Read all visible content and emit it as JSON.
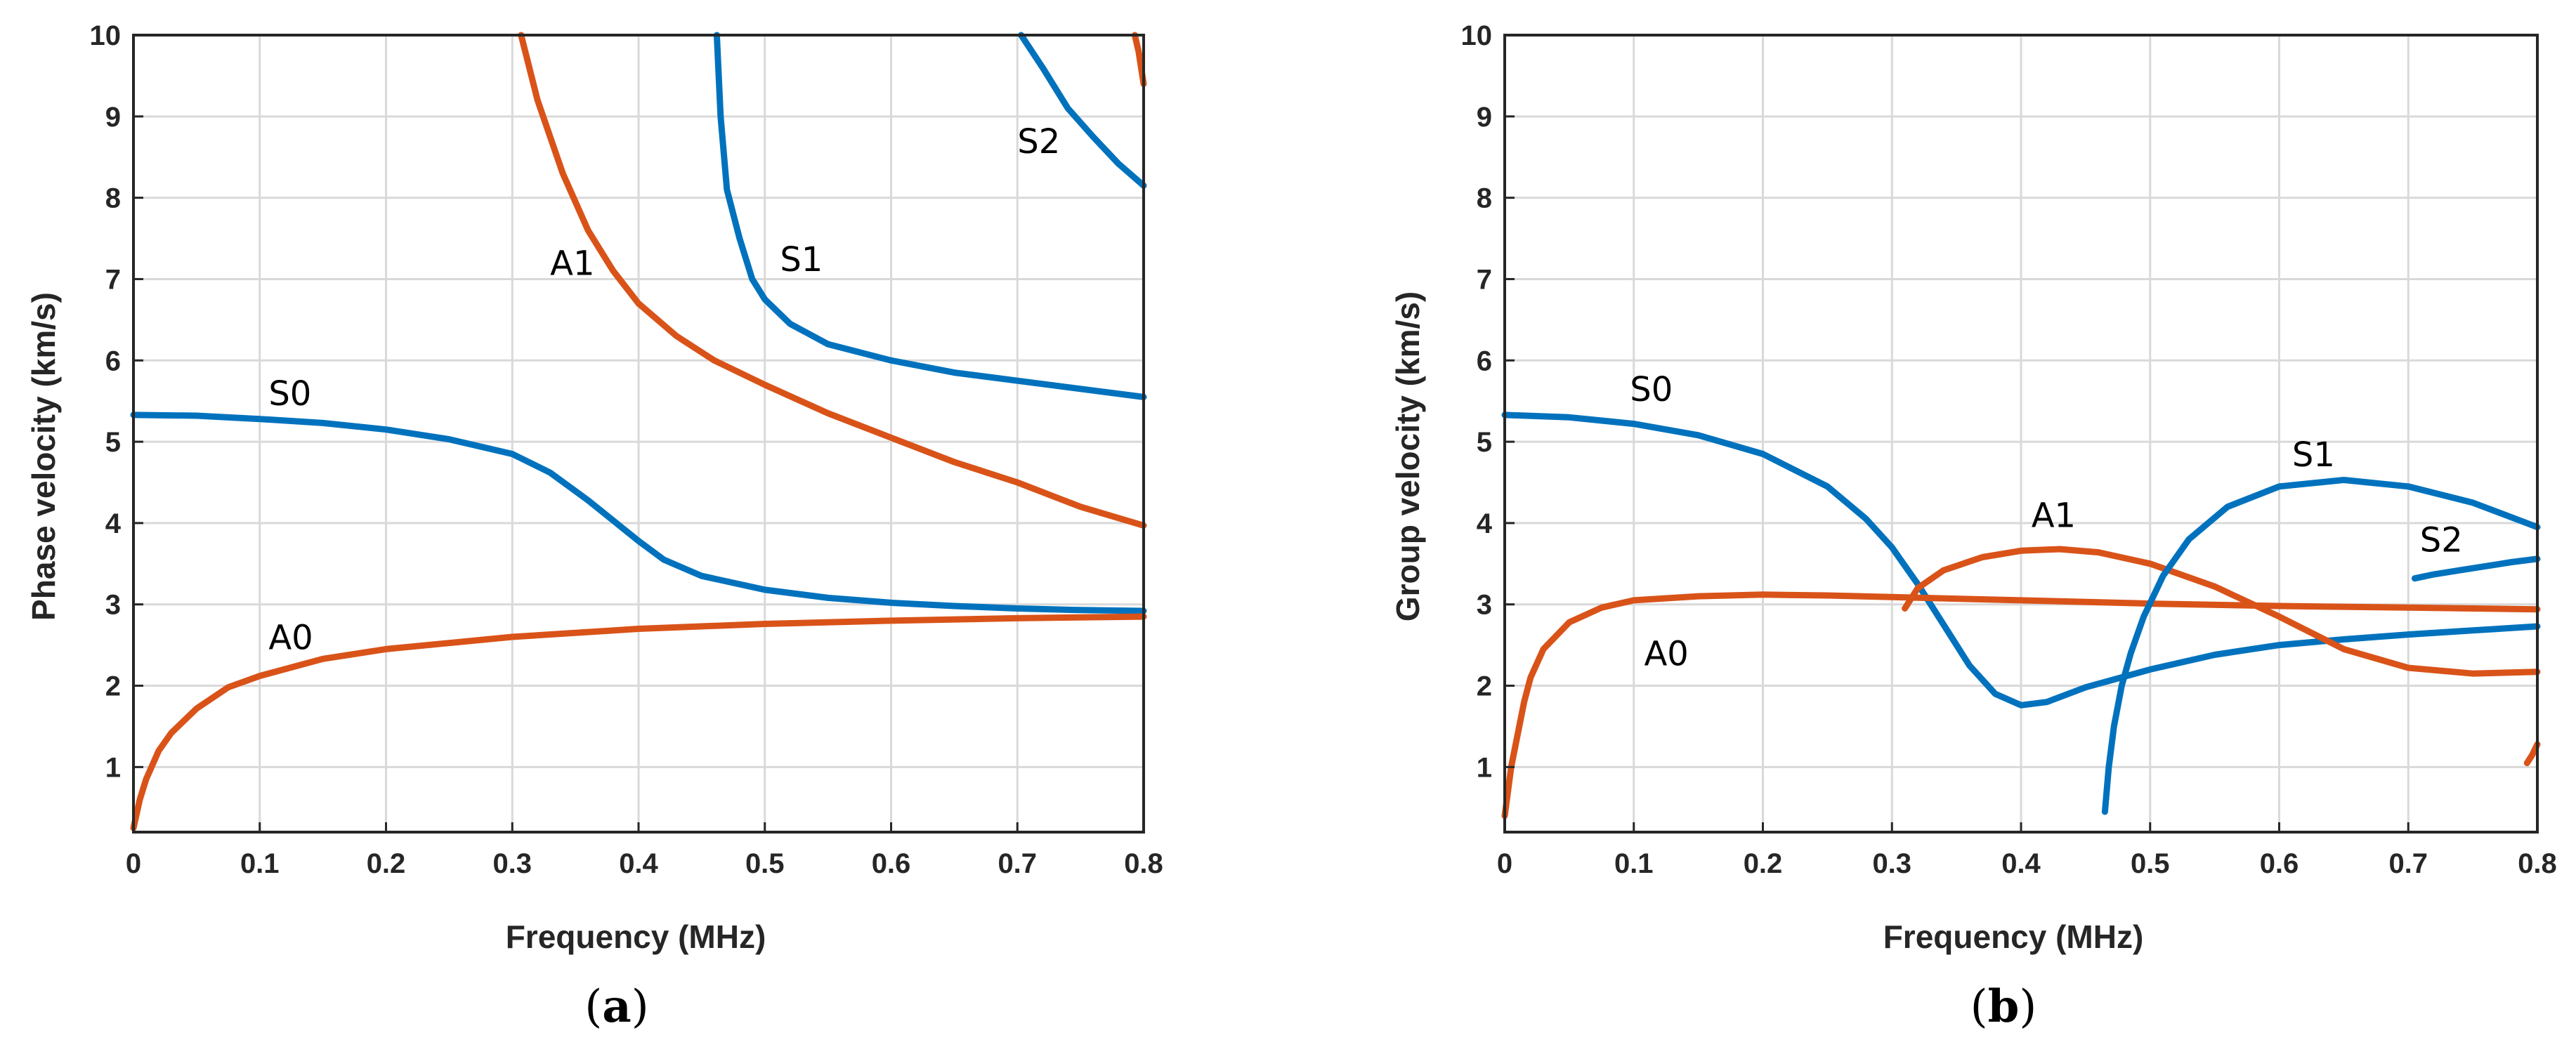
{
  "colors": {
    "symmetric": "#0072BD",
    "antisymmetric": "#D95319"
  },
  "chart_data": [
    {
      "type": "line",
      "panel": "(a)",
      "panel_letter": "a",
      "xlabel": "Frequency (MHz)",
      "ylabel": "Phase velocity (km/s)",
      "xlim": [
        0,
        0.8
      ],
      "ylim": [
        0.2,
        10
      ],
      "xticks": [
        "0",
        "0.1",
        "0.2",
        "0.3",
        "0.4",
        "0.5",
        "0.6",
        "0.7",
        "0.8"
      ],
      "yticks": [
        "1",
        "2",
        "3",
        "4",
        "5",
        "6",
        "7",
        "8",
        "9",
        "10"
      ],
      "grid": true,
      "series": [
        {
          "name": "S0",
          "family": "symmetric",
          "x": [
            0,
            0.05,
            0.1,
            0.15,
            0.2,
            0.25,
            0.3,
            0.33,
            0.36,
            0.38,
            0.4,
            0.42,
            0.45,
            0.5,
            0.55,
            0.6,
            0.65,
            0.7,
            0.75,
            0.8
          ],
          "y": [
            5.33,
            5.32,
            5.28,
            5.23,
            5.15,
            5.03,
            4.85,
            4.62,
            4.28,
            4.03,
            3.78,
            3.55,
            3.35,
            3.18,
            3.08,
            3.02,
            2.98,
            2.95,
            2.93,
            2.92
          ]
        },
        {
          "name": "A0",
          "family": "antisymmetric",
          "x": [
            0,
            0.005,
            0.01,
            0.02,
            0.03,
            0.05,
            0.075,
            0.1,
            0.15,
            0.2,
            0.3,
            0.4,
            0.5,
            0.6,
            0.7,
            0.8
          ],
          "y": [
            0.25,
            0.6,
            0.85,
            1.2,
            1.42,
            1.72,
            1.98,
            2.12,
            2.33,
            2.45,
            2.6,
            2.7,
            2.76,
            2.8,
            2.83,
            2.85
          ]
        },
        {
          "name": "A1",
          "family": "antisymmetric",
          "x": [
            0.307,
            0.32,
            0.34,
            0.36,
            0.38,
            0.4,
            0.43,
            0.46,
            0.5,
            0.55,
            0.6,
            0.65,
            0.7,
            0.75,
            0.8
          ],
          "y": [
            10,
            9.2,
            8.3,
            7.6,
            7.1,
            6.7,
            6.3,
            6.0,
            5.7,
            5.35,
            5.05,
            4.75,
            4.5,
            4.2,
            3.97
          ]
        },
        {
          "name": "S1",
          "family": "symmetric",
          "x": [
            0.462,
            0.465,
            0.47,
            0.48,
            0.49,
            0.5,
            0.52,
            0.55,
            0.6,
            0.65,
            0.7,
            0.75,
            0.8
          ],
          "y": [
            10,
            9.0,
            8.1,
            7.5,
            7.0,
            6.75,
            6.45,
            6.2,
            6.0,
            5.85,
            5.75,
            5.65,
            5.55
          ]
        },
        {
          "name": "S2",
          "family": "symmetric",
          "x": [
            0.703,
            0.72,
            0.74,
            0.76,
            0.78,
            0.8
          ],
          "y": [
            10,
            9.6,
            9.1,
            8.75,
            8.42,
            8.15
          ]
        },
        {
          "name": "",
          "family": "antisymmetric",
          "x": [
            0.793,
            0.796,
            0.8
          ],
          "y": [
            10,
            9.8,
            9.4
          ]
        }
      ],
      "annotations": [
        {
          "text": "S0",
          "x": 0.107,
          "y": 5.45
        },
        {
          "text": "A0",
          "x": 0.107,
          "y": 2.45
        },
        {
          "text": "A1",
          "x": 0.33,
          "y": 7.05
        },
        {
          "text": "S1",
          "x": 0.512,
          "y": 7.1
        },
        {
          "text": "S2",
          "x": 0.7,
          "y": 8.55
        }
      ]
    },
    {
      "type": "line",
      "panel": "(b)",
      "panel_letter": "b",
      "xlabel": "Frequency (MHz)",
      "ylabel": "Group velocity (km/s)",
      "xlim": [
        0,
        0.8
      ],
      "ylim": [
        0.2,
        10
      ],
      "xticks": [
        "0",
        "0.1",
        "0.2",
        "0.3",
        "0.4",
        "0.5",
        "0.6",
        "0.7",
        "0.8"
      ],
      "yticks": [
        "1",
        "2",
        "3",
        "4",
        "5",
        "6",
        "7",
        "8",
        "9",
        "10"
      ],
      "grid": true,
      "series": [
        {
          "name": "S0",
          "family": "symmetric",
          "x": [
            0,
            0.05,
            0.1,
            0.15,
            0.2,
            0.25,
            0.28,
            0.3,
            0.32,
            0.34,
            0.36,
            0.38,
            0.4,
            0.42,
            0.45,
            0.5,
            0.55,
            0.6,
            0.65,
            0.7,
            0.75,
            0.8
          ],
          "y": [
            5.33,
            5.3,
            5.22,
            5.08,
            4.85,
            4.45,
            4.05,
            3.7,
            3.25,
            2.75,
            2.25,
            1.9,
            1.76,
            1.8,
            1.98,
            2.2,
            2.38,
            2.5,
            2.57,
            2.63,
            2.68,
            2.73
          ]
        },
        {
          "name": "A0",
          "family": "antisymmetric",
          "x": [
            0,
            0.005,
            0.01,
            0.015,
            0.02,
            0.03,
            0.05,
            0.075,
            0.1,
            0.15,
            0.2,
            0.25,
            0.3,
            0.4,
            0.5,
            0.6,
            0.7,
            0.8
          ],
          "y": [
            0.4,
            1.0,
            1.4,
            1.8,
            2.1,
            2.45,
            2.78,
            2.96,
            3.05,
            3.1,
            3.12,
            3.11,
            3.09,
            3.05,
            3.01,
            2.98,
            2.96,
            2.94
          ]
        },
        {
          "name": "A1",
          "family": "antisymmetric",
          "x": [
            0.31,
            0.32,
            0.34,
            0.37,
            0.4,
            0.43,
            0.46,
            0.5,
            0.55,
            0.6,
            0.65,
            0.7,
            0.75,
            0.8
          ],
          "y": [
            2.95,
            3.2,
            3.42,
            3.58,
            3.66,
            3.68,
            3.64,
            3.5,
            3.22,
            2.85,
            2.45,
            2.22,
            2.15,
            2.17
          ]
        },
        {
          "name": "S1",
          "family": "symmetric",
          "x": [
            0.465,
            0.468,
            0.472,
            0.478,
            0.485,
            0.495,
            0.51,
            0.53,
            0.56,
            0.6,
            0.65,
            0.7,
            0.75,
            0.8
          ],
          "y": [
            0.45,
            1.0,
            1.5,
            2.0,
            2.4,
            2.85,
            3.35,
            3.8,
            4.2,
            4.45,
            4.53,
            4.45,
            4.25,
            3.95
          ]
        },
        {
          "name": "S2",
          "family": "symmetric",
          "x": [
            0.705,
            0.72,
            0.74,
            0.76,
            0.78,
            0.8
          ],
          "y": [
            3.32,
            3.37,
            3.42,
            3.47,
            3.52,
            3.56
          ]
        },
        {
          "name": "",
          "family": "antisymmetric",
          "x": [
            0.792,
            0.796,
            0.8
          ],
          "y": [
            1.05,
            1.15,
            1.28
          ]
        }
      ],
      "annotations": [
        {
          "text": "S0",
          "x": 0.097,
          "y": 5.5
        },
        {
          "text": "A0",
          "x": 0.108,
          "y": 2.25
        },
        {
          "text": "A1",
          "x": 0.408,
          "y": 3.95
        },
        {
          "text": "S1",
          "x": 0.61,
          "y": 4.7
        },
        {
          "text": "S2",
          "x": 0.709,
          "y": 3.65
        }
      ]
    }
  ]
}
